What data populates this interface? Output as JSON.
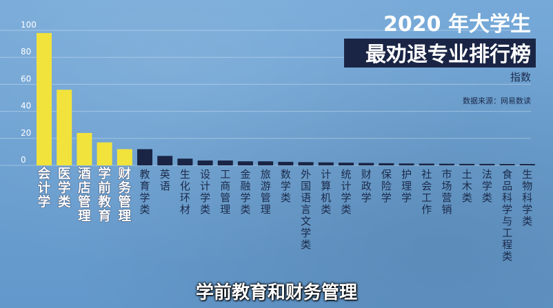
{
  "chart_data": {
    "type": "bar",
    "title_line1": "2020 年大学生",
    "title_line2": "最劝退专业排行榜",
    "ylabel": "指数",
    "source": "数据来源：网易数读",
    "ylim": [
      0,
      100
    ],
    "yticks": [
      0,
      20,
      40,
      60,
      80,
      100
    ],
    "grid": true,
    "categories": [
      "会计学",
      "医学类",
      "酒店管理",
      "学前教育",
      "财务管理",
      "教育学类",
      "英语",
      "生化环材",
      "设计学类",
      "工商管理",
      "金融学类",
      "旅游管理",
      "数学类",
      "外国语言文学类",
      "计算机类",
      "统计学类",
      "财政学",
      "保险学",
      "护理学",
      "社会工作",
      "市场营销",
      "土木类",
      "法学类",
      "食品科学与工程类",
      "生物科学类"
    ],
    "values": [
      98,
      56,
      24,
      17,
      12,
      12,
      7,
      5,
      3.6,
      3.6,
      3,
      3,
      2.6,
      2.4,
      2.2,
      2,
      1.8,
      1.6,
      1.4,
      1.3,
      1.2,
      1.1,
      1.1,
      1,
      1
    ],
    "highlight_count": 5,
    "colors": {
      "highlight": "#f2e33c",
      "normal": "#1a2545",
      "highlight_label": "#ffffff",
      "normal_label": "#1b2a4a",
      "title2_bg": "#1a2545"
    }
  },
  "caption": "学前教育和财务管理"
}
